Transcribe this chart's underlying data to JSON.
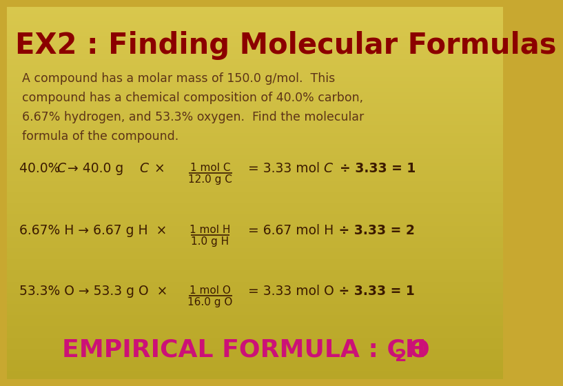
{
  "title": "EX2 : Finding Molecular Formulas",
  "title_color": "#8B0000",
  "bg_color": "#C8A830",
  "desc_color": "#5C3317",
  "line_color": "#3B1A00",
  "div_color": "#3B1A00",
  "formula_color": "#CC1177",
  "description_lines": [
    "A compound has a molar mass of 150.0 g/mol.  This",
    "compound has a chemical composition of 40.0% carbon,",
    "6.67% hydrogen, and 53.3% oxygen.  Find the molecular",
    "formula of the compound."
  ],
  "line1_left": "40.0% C → 40.0 g C  ×",
  "line1_frac_num": "1 mol C",
  "line1_frac_den": "12.0 g C",
  "line1_result": "= 3.33 mol C",
  "line1_div": " ÷ 3.33 = 1",
  "line2_left": "6.67% H → 6.67 g H  ×",
  "line2_frac_num": "1 mol H",
  "line2_frac_den": "1.0 g H",
  "line2_result": "= 6.67 mol H",
  "line2_div": " ÷ 3.33 = 2",
  "line3_left": "53.3% O → 53.3 g O  ×",
  "line3_frac_num": "1 mol O",
  "line3_frac_den": "16.0 g O",
  "line3_result": "= 3.33 mol O",
  "line3_div": " ÷ 3.33 = 1",
  "empirical_main": "EMPIRICAL FORMULA : CH",
  "empirical_sub": "2",
  "empirical_end": "O"
}
